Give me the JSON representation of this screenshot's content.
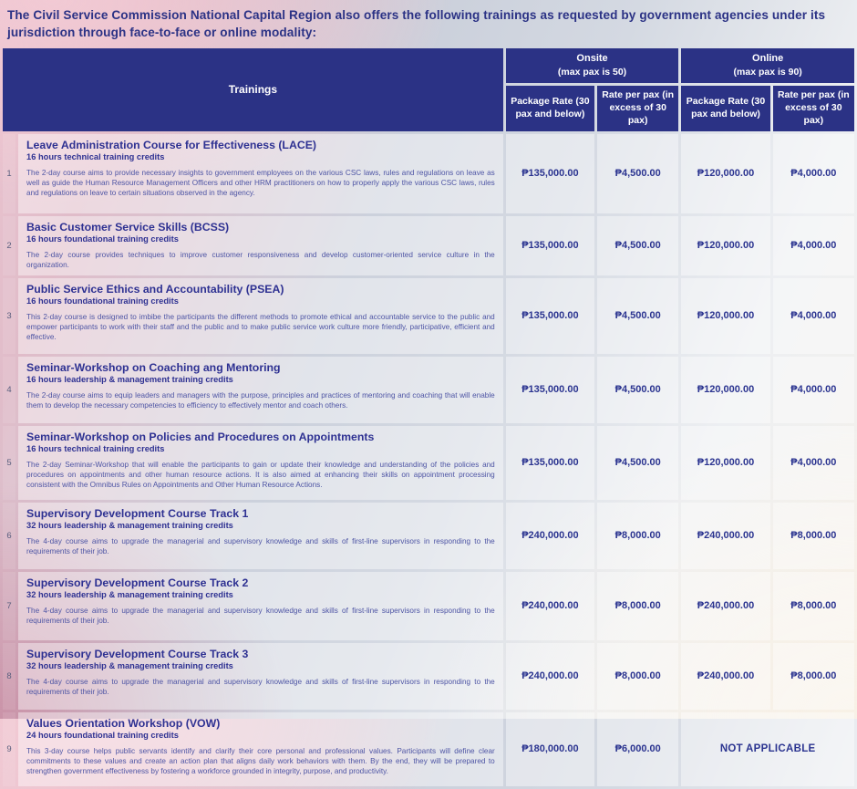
{
  "page": {
    "intro": "The Civil Service Commission National Capital Region also offers the following trainings as requested by government agencies under its jurisdiction through face-to-face or online modality:"
  },
  "table": {
    "trainings_header": "Trainings",
    "groups": [
      {
        "label": "Onsite",
        "max": "(max pax is 50)"
      },
      {
        "label": "Online",
        "max": "(max pax is 90)"
      }
    ],
    "sub_headers": [
      "Package Rate (30 pax and below)",
      "Rate per pax (in excess of 30 pax)",
      "Package Rate (30 pax and below)",
      "Rate per pax (in excess of 30 pax)"
    ],
    "rows": [
      {
        "num": "1",
        "title": "Leave Administration Course for Effectiveness (LACE)",
        "credits": "16 hours technical training credits",
        "description": "The 2-day course aims to provide necessary insights to government employees on the various CSC laws, rules and regulations on leave as well as guide the Human Resource Management Officers and other HRM practitioners on how to properly apply the various CSC laws, rules and regulations on leave to certain situations observed in the agency.",
        "onsite_package": "₱135,000.00",
        "onsite_per_pax": "₱4,500.00",
        "online_package": "₱120,000.00",
        "online_per_pax": "₱4,000.00"
      },
      {
        "num": "2",
        "title": "Basic Customer Service Skills (BCSS)",
        "credits": "16 hours foundational training credits",
        "description": "The 2-day course provides techniques to improve customer responsiveness and develop customer-oriented service culture in the organization.",
        "onsite_package": "₱135,000.00",
        "onsite_per_pax": "₱4,500.00",
        "online_package": "₱120,000.00",
        "online_per_pax": "₱4,000.00"
      },
      {
        "num": "3",
        "title": "Public Service Ethics and Accountability (PSEA)",
        "credits": "16 hours foundational training credits",
        "description": "This 2-day course is designed to imbibe the participants the different methods to promote ethical and accountable service to the public and empower participants to work with their staff and the public and to make public service work culture more friendly, participative, efficient and effective.",
        "onsite_package": "₱135,000.00",
        "onsite_per_pax": "₱4,500.00",
        "online_package": "₱120,000.00",
        "online_per_pax": "₱4,000.00"
      },
      {
        "num": "4",
        "title": "Seminar-Workshop on Coaching ang Mentoring",
        "credits": "16 hours leadership & management training credits",
        "description": "The 2-day course aims to equip leaders and managers with the purpose, principles and practices of mentoring and coaching that will enable them to develop the necessary competencies to efficiency to effectively mentor and coach others.",
        "onsite_package": "₱135,000.00",
        "onsite_per_pax": "₱4,500.00",
        "online_package": "₱120,000.00",
        "online_per_pax": "₱4,000.00"
      },
      {
        "num": "5",
        "title": "Seminar-Workshop on Policies and Procedures on Appointments",
        "credits": "16 hours technical training credits",
        "description": "The 2-day Seminar-Workshop that will enable the participants to gain or update their knowledge and understanding of the policies and procedures on appointments and other human resource actions. It is also aimed at enhancing their skills on appointment processing consistent with the Omnibus Rules on Appointments and Other Human Resource Actions.",
        "onsite_package": "₱135,000.00",
        "onsite_per_pax": "₱4,500.00",
        "online_package": "₱120,000.00",
        "online_per_pax": "₱4,000.00"
      },
      {
        "num": "6",
        "title": "Supervisory Development Course Track 1",
        "credits": "32 hours leadership & management training credits",
        "description": "The 4-day course aims to upgrade the managerial and supervisory knowledge and skills of first-line supervisors in responding to the requirements of their job.",
        "onsite_package": "₱240,000.00",
        "onsite_per_pax": "₱8,000.00",
        "online_package": "₱240,000.00",
        "online_per_pax": "₱8,000.00"
      },
      {
        "num": "7",
        "title": "Supervisory Development Course Track 2",
        "credits": "32 hours leadership & management training credits",
        "description": "The 4-day course aims to upgrade the managerial and supervisory knowledge and skills of first-line supervisors in responding to the requirements of their job.",
        "onsite_package": "₱240,000.00",
        "onsite_per_pax": "₱8,000.00",
        "online_package": "₱240,000.00",
        "online_per_pax": "₱8,000.00"
      },
      {
        "num": "8",
        "title": "Supervisory Development Course Track 3",
        "credits": "32 hours leadership & management training credits",
        "description": "The 4-day course aims to upgrade the managerial and supervisory knowledge and skills of first-line supervisors in responding to the requirements of their job.",
        "onsite_package": "₱240,000.00",
        "onsite_per_pax": "₱8,000.00",
        "online_package": "₱240,000.00",
        "online_per_pax": "₱8,000.00"
      },
      {
        "num": "9",
        "title": "Values Orientation Workshop (VOW)",
        "credits": "24 hours foundational training credits",
        "description": "This 3-day course helps public servants identify and clarify their core personal and professional values. Participants will define clear commitments to these values and create an action plan that aligns daily work behaviors with them. By the end, they will be prepared to strengthen government effectiveness by fostering a workforce grounded in integrity, purpose, and productivity.",
        "onsite_package": "₱180,000.00",
        "onsite_per_pax": "₱6,000.00",
        "online_note": "NOT APPLICABLE"
      }
    ]
  },
  "colors": {
    "header_navy": "#2b3285",
    "title_blue": "#2e3192",
    "description_indigo": "#4d54a4",
    "price_navy": "#2b3490"
  }
}
